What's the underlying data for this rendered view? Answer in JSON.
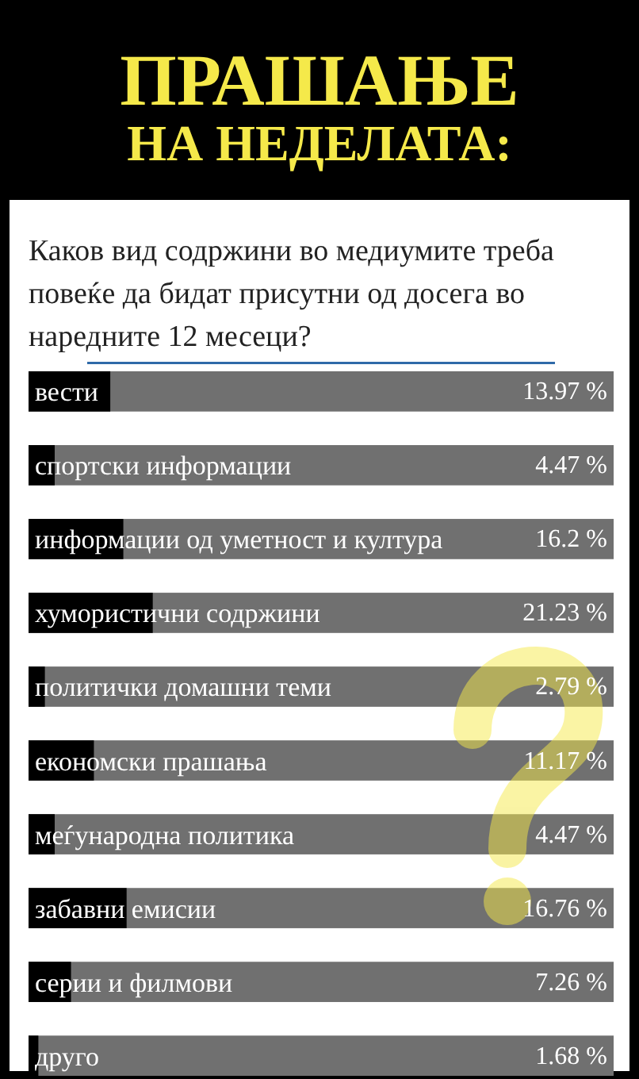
{
  "chart_data": {
    "type": "bar",
    "orientation": "horizontal",
    "title": "ПРАШАЊЕ НА НЕДЕЛАТА:",
    "subtitle": "Каков вид содржини во медиумите треба повеќе да бидат присутни од досега во наредните 12 месеци?",
    "categories": [
      "вести",
      "спортски информации",
      "информации од уметност и култура",
      "хумористични содржини",
      "политички домашни теми",
      "економски прашања",
      "меѓународна политика",
      "забавни емисии",
      "серии и филмови",
      "друго"
    ],
    "values": [
      13.97,
      4.47,
      16.2,
      21.23,
      2.79,
      11.17,
      4.47,
      16.76,
      7.26,
      1.68
    ],
    "value_labels": [
      "13.97 %",
      "4.47 %",
      "16.2 %",
      "21.23 %",
      "2.79 %",
      "11.17 %",
      "4.47 %",
      "16.76 %",
      "7.26 %",
      "1.68 %"
    ],
    "color": "#000000",
    "xlim": [
      0,
      100
    ],
    "tick_labels": "y"
  }
}
